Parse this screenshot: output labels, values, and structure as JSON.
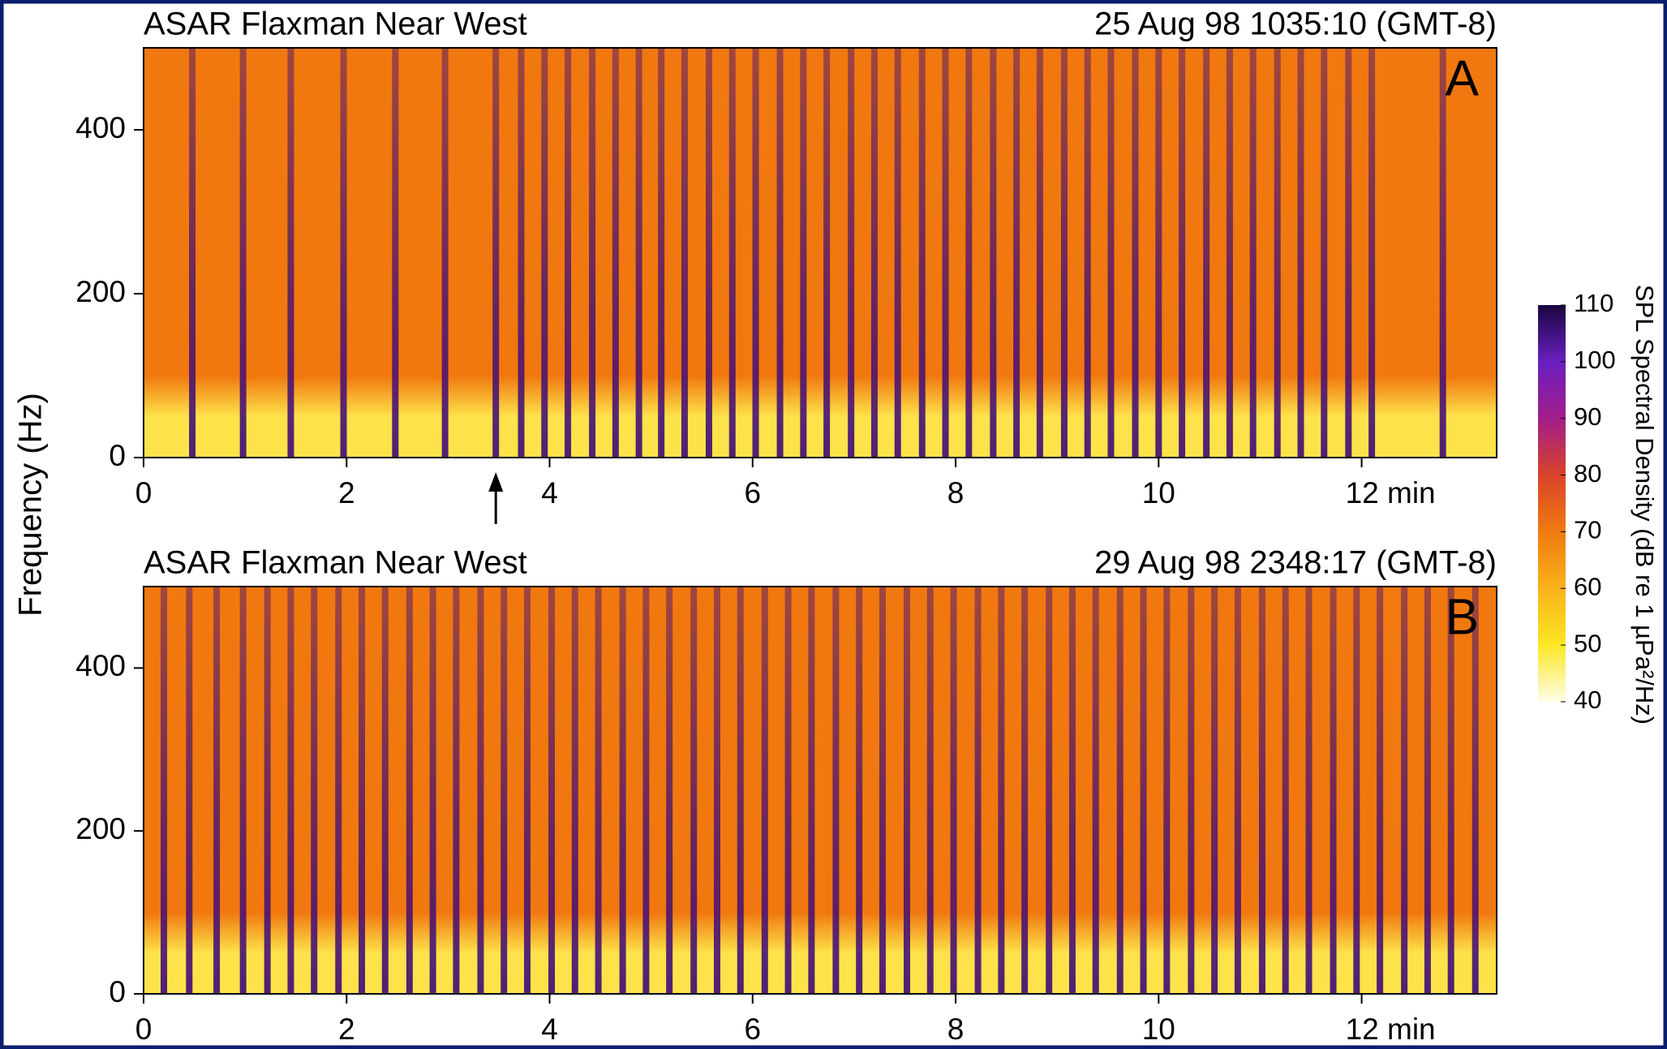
{
  "chart_data": [
    {
      "type": "spectrogram",
      "title": "ASAR Flaxman Near West",
      "subtitle": "25 Aug 98  1035:10 (GMT-8)",
      "panel_label": "A",
      "xlim": [
        0,
        13.33
      ],
      "xticks": [
        0,
        2,
        4,
        6,
        8,
        10,
        {
          "value": 12,
          "label": "12 min"
        }
      ],
      "ylim": [
        0,
        500
      ],
      "yticks": [
        0,
        200,
        400
      ],
      "background_color": "#f0780f",
      "low_band_color": "#fde24a",
      "pulse_color": "#3c0a78",
      "pulses": [
        0.48,
        0.98,
        1.45,
        1.97,
        2.48,
        2.97,
        3.47,
        3.72,
        3.95,
        4.18,
        4.42,
        4.65,
        4.88,
        5.1,
        5.33,
        5.57,
        5.8,
        6.03,
        6.27,
        6.5,
        6.73,
        6.97,
        7.2,
        7.43,
        7.67,
        7.9,
        8.13,
        8.37,
        8.6,
        8.83,
        9.07,
        9.3,
        9.53,
        9.77,
        10.0,
        10.23,
        10.47,
        10.7,
        10.93,
        11.17,
        11.4,
        11.63,
        11.87,
        12.1,
        12.8
      ],
      "arrow_x": 3.47
    },
    {
      "type": "spectrogram",
      "title": "ASAR Flaxman Near West",
      "subtitle": "29 Aug 98  2348:17 (GMT-8)",
      "panel_label": "B",
      "xlim": [
        0,
        13.33
      ],
      "xticks": [
        0,
        2,
        4,
        6,
        8,
        10,
        {
          "value": 12,
          "label": "12 min"
        }
      ],
      "ylim": [
        0,
        500
      ],
      "yticks": [
        0,
        200,
        400
      ],
      "background_color": "#f0780f",
      "low_band_color": "#fde24a",
      "pulse_color": "#3c0a78",
      "pulses": [
        0.2,
        0.45,
        0.72,
        0.98,
        1.22,
        1.45,
        1.68,
        1.92,
        2.15,
        2.38,
        2.62,
        2.85,
        3.08,
        3.32,
        3.55,
        3.78,
        4.02,
        4.25,
        4.48,
        4.72,
        4.95,
        5.18,
        5.42,
        5.65,
        5.88,
        6.12,
        6.35,
        6.58,
        6.82,
        7.05,
        7.28,
        7.52,
        7.75,
        7.98,
        8.22,
        8.45,
        8.68,
        8.92,
        9.15,
        9.38,
        9.62,
        9.85,
        10.08,
        10.32,
        10.55,
        10.78,
        11.02,
        11.25,
        11.48,
        11.72,
        11.95,
        12.18,
        12.42,
        12.65,
        12.88,
        13.12
      ]
    }
  ],
  "y_axis_label": "Frequency (Hz)",
  "colorbar": {
    "title": "SPL Spectral Density (dB re 1 µPa²/Hz)",
    "lim": [
      40,
      110
    ],
    "ticks": [
      40,
      50,
      60,
      70,
      80,
      90,
      100,
      110
    ],
    "colors": [
      "#fffde8",
      "#fde725",
      "#f9b21a",
      "#f07a10",
      "#d8432a",
      "#a21d8a",
      "#6a1fc0",
      "#1a0540"
    ]
  }
}
